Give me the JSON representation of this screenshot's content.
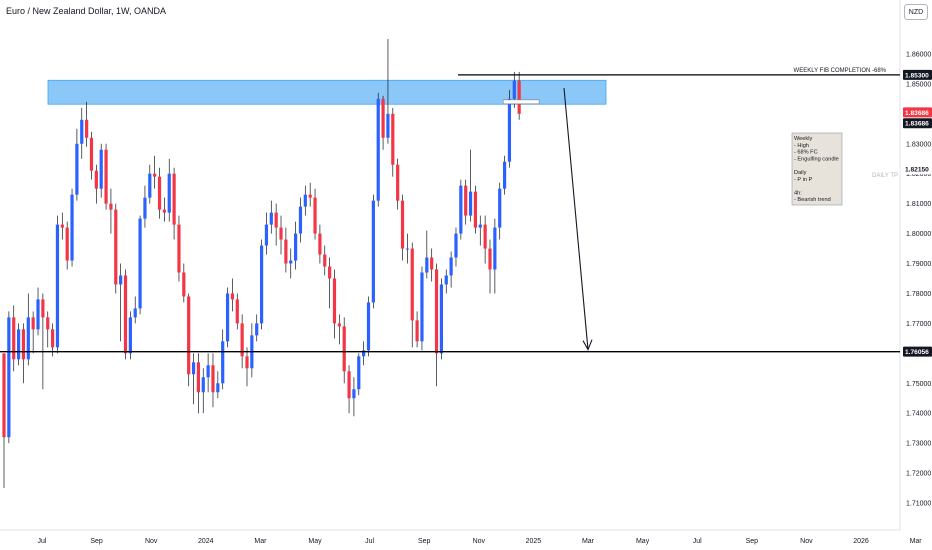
{
  "header": {
    "title": "Euro / New Zealand Dollar, 1W, OANDA",
    "currency_button": "NZD"
  },
  "chart_data": {
    "type": "candlestick",
    "title": "Euro / New Zealand Dollar, 1W, OANDA",
    "y_ticks": [
      1.86,
      1.85,
      1.84,
      1.83,
      1.82,
      1.81,
      1.8,
      1.79,
      1.78,
      1.77,
      1.76,
      1.75,
      1.74,
      1.73,
      1.72,
      1.71
    ],
    "y_tick_labels": [
      "1.86000",
      "1.85000",
      "1.84000",
      "1.83000",
      "1.82000",
      "1.81000",
      "1.80000",
      "1.79000",
      "1.78000",
      "1.77000",
      "1.76000",
      "1.75000",
      "1.74000",
      "1.73000",
      "1.72000",
      "1.71000"
    ],
    "x_labels": [
      "Jul",
      "Sep",
      "Nov",
      "2024",
      "Mar",
      "May",
      "Jul",
      "Sep",
      "Nov",
      "2025",
      "Mar",
      "May",
      "Jul",
      "Sep",
      "Nov",
      "2026",
      "Mar"
    ],
    "ylim": [
      1.707,
      1.869
    ],
    "candles": [
      [
        1.76,
        1.732,
        1.758,
        1.715
      ],
      [
        1.732,
        1.772,
        1.774,
        1.73
      ],
      [
        1.772,
        1.758,
        1.776,
        1.754
      ],
      [
        1.758,
        1.768,
        1.77,
        1.756
      ],
      [
        1.768,
        1.758,
        1.77,
        1.75
      ],
      [
        1.758,
        1.772,
        1.78,
        1.756
      ],
      [
        1.772,
        1.768,
        1.774,
        1.76
      ],
      [
        1.768,
        1.778,
        1.782,
        1.766
      ],
      [
        1.778,
        1.772,
        1.78,
        1.748
      ],
      [
        1.772,
        1.768,
        1.774,
        1.762
      ],
      [
        1.768,
        1.762,
        1.77,
        1.759
      ],
      [
        1.762,
        1.803,
        1.806,
        1.76
      ],
      [
        1.803,
        1.802,
        1.807,
        1.798
      ],
      [
        1.802,
        1.791,
        1.804,
        1.788
      ],
      [
        1.791,
        1.813,
        1.815,
        1.789
      ],
      [
        1.813,
        1.83,
        1.835,
        1.811
      ],
      [
        1.83,
        1.838,
        1.842,
        1.825
      ],
      [
        1.838,
        1.832,
        1.844,
        1.829
      ],
      [
        1.832,
        1.821,
        1.834,
        1.818
      ],
      [
        1.821,
        1.815,
        1.823,
        1.81
      ],
      [
        1.815,
        1.828,
        1.83,
        1.812
      ],
      [
        1.828,
        1.81,
        1.83,
        1.808
      ],
      [
        1.81,
        1.808,
        1.815,
        1.8
      ],
      [
        1.808,
        1.783,
        1.81,
        1.78
      ],
      [
        1.783,
        1.786,
        1.79,
        1.764
      ],
      [
        1.786,
        1.76,
        1.788,
        1.758
      ],
      [
        1.76,
        1.772,
        1.774,
        1.758
      ],
      [
        1.772,
        1.775,
        1.779,
        1.77
      ],
      [
        1.775,
        1.805,
        1.806,
        1.773
      ],
      [
        1.805,
        1.812,
        1.816,
        1.802
      ],
      [
        1.812,
        1.82,
        1.823,
        1.81
      ],
      [
        1.82,
        1.819,
        1.826,
        1.815
      ],
      [
        1.819,
        1.808,
        1.822,
        1.805
      ],
      [
        1.808,
        1.807,
        1.812,
        1.804
      ],
      [
        1.807,
        1.82,
        1.825,
        1.804
      ],
      [
        1.82,
        1.803,
        1.822,
        1.798
      ],
      [
        1.803,
        1.787,
        1.806,
        1.784
      ],
      [
        1.787,
        1.779,
        1.79,
        1.777
      ],
      [
        1.779,
        1.753,
        1.78,
        1.749
      ],
      [
        1.753,
        1.757,
        1.76,
        1.743
      ],
      [
        1.757,
        1.747,
        1.76,
        1.74
      ],
      [
        1.747,
        1.752,
        1.755,
        1.74
      ],
      [
        1.752,
        1.756,
        1.76,
        1.747
      ],
      [
        1.756,
        1.747,
        1.76,
        1.742
      ],
      [
        1.747,
        1.75,
        1.754,
        1.745
      ],
      [
        1.75,
        1.764,
        1.768,
        1.748
      ],
      [
        1.764,
        1.78,
        1.782,
        1.762
      ],
      [
        1.78,
        1.778,
        1.785,
        1.774
      ],
      [
        1.778,
        1.77,
        1.78,
        1.768
      ],
      [
        1.77,
        1.759,
        1.773,
        1.755
      ],
      [
        1.759,
        1.755,
        1.762,
        1.749
      ],
      [
        1.755,
        1.766,
        1.77,
        1.752
      ],
      [
        1.766,
        1.77,
        1.773,
        1.764
      ],
      [
        1.77,
        1.796,
        1.798,
        1.768
      ],
      [
        1.796,
        1.803,
        1.807,
        1.793
      ],
      [
        1.803,
        1.807,
        1.811,
        1.8
      ],
      [
        1.807,
        1.802,
        1.81,
        1.796
      ],
      [
        1.802,
        1.798,
        1.806,
        1.793
      ],
      [
        1.798,
        1.79,
        1.802,
        1.787
      ],
      [
        1.79,
        1.791,
        1.795,
        1.785
      ],
      [
        1.791,
        1.8,
        1.804,
        1.788
      ],
      [
        1.8,
        1.809,
        1.812,
        1.797
      ],
      [
        1.809,
        1.813,
        1.816,
        1.806
      ],
      [
        1.813,
        1.812,
        1.817,
        1.809
      ],
      [
        1.812,
        1.8,
        1.815,
        1.798
      ],
      [
        1.8,
        1.793,
        1.803,
        1.79
      ],
      [
        1.793,
        1.789,
        1.796,
        1.786
      ],
      [
        1.789,
        1.785,
        1.792,
        1.775
      ],
      [
        1.785,
        1.77,
        1.788,
        1.765
      ],
      [
        1.77,
        1.769,
        1.773,
        1.763
      ],
      [
        1.769,
        1.754,
        1.772,
        1.75
      ],
      [
        1.754,
        1.745,
        1.756,
        1.74
      ],
      [
        1.745,
        1.748,
        1.752,
        1.739
      ],
      [
        1.748,
        1.759,
        1.76,
        1.746
      ],
      [
        1.759,
        1.761,
        1.764,
        1.756
      ],
      [
        1.761,
        1.777,
        1.779,
        1.759
      ],
      [
        1.777,
        1.811,
        1.813,
        1.775
      ],
      [
        1.811,
        1.845,
        1.847,
        1.809
      ],
      [
        1.845,
        1.832,
        1.846,
        1.828
      ],
      [
        1.832,
        1.84,
        1.865,
        1.83
      ],
      [
        1.84,
        1.823,
        1.842,
        1.819
      ],
      [
        1.823,
        1.811,
        1.825,
        1.808
      ],
      [
        1.811,
        1.795,
        1.813,
        1.791
      ],
      [
        1.795,
        1.795,
        1.8,
        1.79
      ],
      [
        1.795,
        1.771,
        1.797,
        1.762
      ],
      [
        1.771,
        1.764,
        1.774,
        1.762
      ],
      [
        1.764,
        1.787,
        1.789,
        1.761
      ],
      [
        1.787,
        1.792,
        1.801,
        1.785
      ],
      [
        1.792,
        1.788,
        1.795,
        1.784
      ],
      [
        1.788,
        1.76,
        1.79,
        1.749
      ],
      [
        1.76,
        1.783,
        1.785,
        1.758
      ],
      [
        1.783,
        1.786,
        1.788,
        1.78
      ],
      [
        1.786,
        1.792,
        1.794,
        1.782
      ],
      [
        1.792,
        1.8,
        1.802,
        1.789
      ],
      [
        1.8,
        1.816,
        1.818,
        1.798
      ],
      [
        1.816,
        1.806,
        1.818,
        1.803
      ],
      [
        1.806,
        1.814,
        1.828,
        1.804
      ],
      [
        1.814,
        1.802,
        1.816,
        1.8
      ],
      [
        1.802,
        1.803,
        1.806,
        1.796
      ],
      [
        1.803,
        1.795,
        1.806,
        1.79
      ],
      [
        1.795,
        1.788,
        1.798,
        1.78
      ],
      [
        1.788,
        1.802,
        1.805,
        1.78
      ],
      [
        1.802,
        1.815,
        1.817,
        1.798
      ],
      [
        1.815,
        1.824,
        1.826,
        1.813
      ],
      [
        1.824,
        1.845,
        1.848,
        1.822
      ],
      [
        1.845,
        1.851,
        1.854,
        1.842
      ],
      [
        1.851,
        1.84,
        1.854,
        1.838
      ]
    ],
    "zone": {
      "y_top": 1.8512,
      "y_bottom": 1.8432
    },
    "fib_level": {
      "value": 1.853,
      "label": "WEEKLY FIB COMPLETION -68%",
      "price_label": "1.85300"
    },
    "daily_tp": {
      "value": 1.8215,
      "label": "DAILY TP",
      "price_label": "1.82150"
    },
    "support": {
      "value": 1.76056,
      "price_label": "1.76056"
    },
    "current_price": {
      "value": 1.83686,
      "price_label": "1.83686"
    },
    "annotation": {
      "lines": [
        "Weekly",
        "- High",
        "- 68% FC",
        "- Engulfing candle",
        "",
        "Daily",
        "- P in P",
        "",
        "4h:",
        "- Bearish trend"
      ]
    },
    "colors": {
      "up": "#2962ff",
      "down": "#f23645",
      "zone": "#64b5f6",
      "line": "#000000",
      "label_bg": "#131722",
      "current": "#f23645"
    }
  }
}
